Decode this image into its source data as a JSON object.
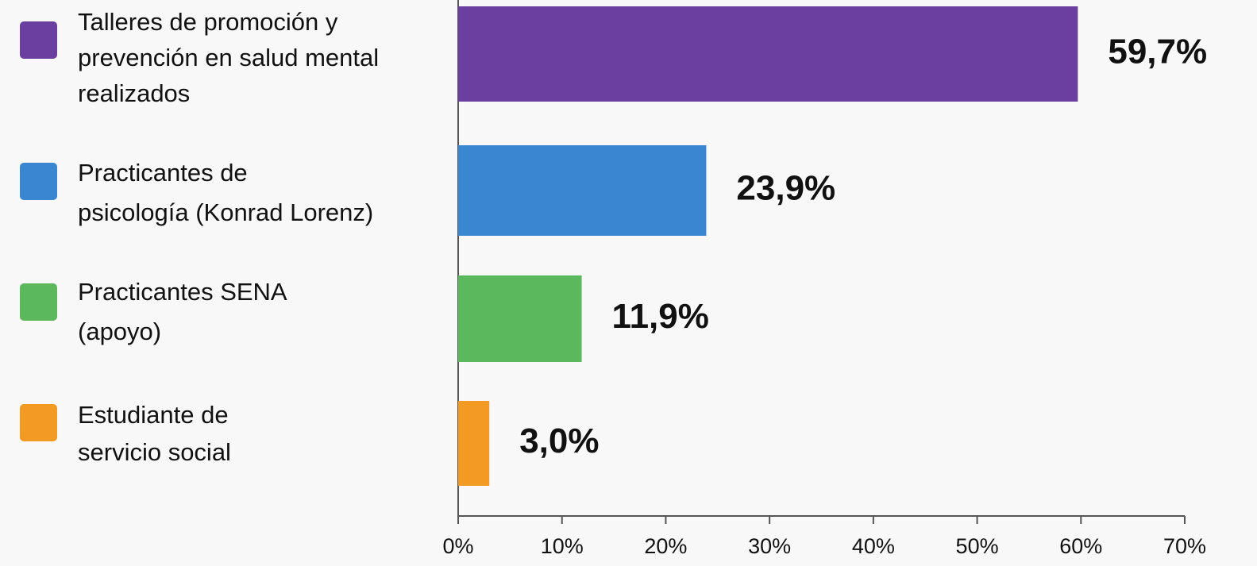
{
  "chart_data": {
    "type": "bar",
    "orientation": "horizontal",
    "categories": [
      [
        "Talleres de promoción y",
        "prevención en salud mental",
        "realizados"
      ],
      [
        "Practicantes de",
        "psicología (Konrad Lorenz)"
      ],
      [
        "Practicantes SENA",
        "(apoyo)"
      ],
      [
        "Estudiante de",
        "servicio social"
      ]
    ],
    "values": [
      59.7,
      23.9,
      11.9,
      3.0
    ],
    "value_labels": [
      "59,7%",
      "23,9%",
      "11,9%",
      "3,0%"
    ],
    "colors": [
      "#6a3fa0",
      "#3a86d0",
      "#5cb85c",
      "#f39a24"
    ],
    "xlim": [
      0,
      70
    ],
    "xticks": [
      {
        "value": 0,
        "label": "0%"
      },
      {
        "value": 10,
        "label": "10%"
      },
      {
        "value": 20,
        "label": "20%"
      },
      {
        "value": 30,
        "label": "30%"
      },
      {
        "value": 40,
        "label": "40%"
      },
      {
        "value": 50,
        "label": "50%"
      },
      {
        "value": 60,
        "label": "60%"
      },
      {
        "value": 70,
        "label": "70%"
      }
    ]
  }
}
